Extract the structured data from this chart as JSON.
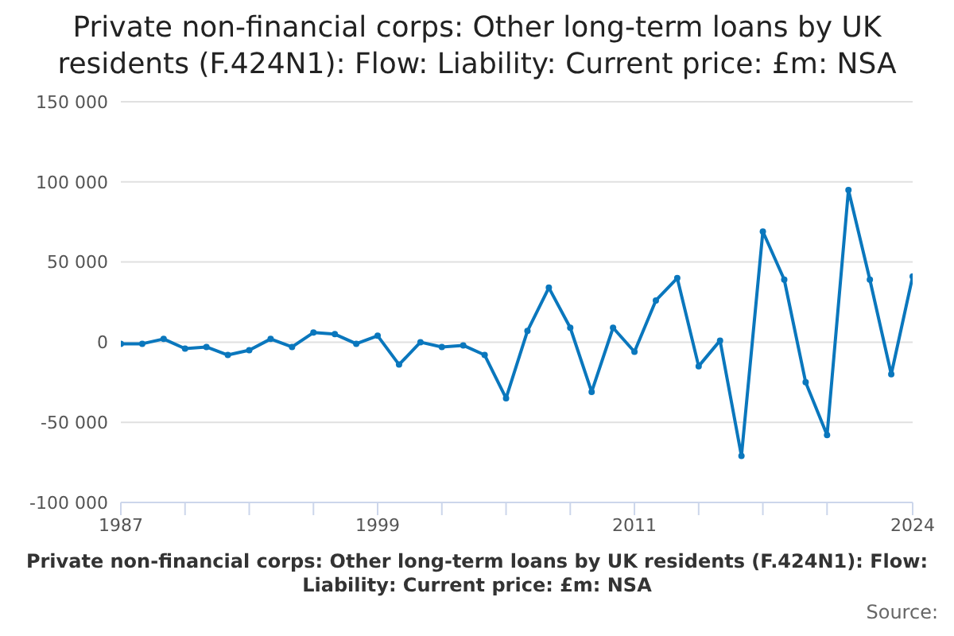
{
  "chart_data": {
    "type": "line",
    "title": "Private non-financial corps: Other long-term loans by UK residents (F.424N1): Flow: Liability: Current price: £m: NSA",
    "xlabel": "Private non-financial corps: Other long-term loans by UK residents (F.424N1): Flow: Liability: Current price: £m: NSA",
    "annotations": [
      "Source:"
    ],
    "x": [
      1987,
      1988,
      1989,
      1990,
      1991,
      1992,
      1993,
      1994,
      1995,
      1996,
      1997,
      1998,
      1999,
      2000,
      2001,
      2002,
      2003,
      2004,
      2005,
      2006,
      2007,
      2008,
      2009,
      2010,
      2011,
      2012,
      2013,
      2014,
      2015,
      2016,
      2017,
      2018,
      2019,
      2020,
      2021,
      2022,
      2023,
      2024
    ],
    "series": [
      {
        "color": "#0a77bd",
        "values": [
          -1000,
          -1000,
          2000,
          -4000,
          -3000,
          -8000,
          -5000,
          2000,
          -3000,
          6000,
          5000,
          -1000,
          4000,
          -14000,
          0,
          -3000,
          -2000,
          -8000,
          -35000,
          7000,
          34000,
          9000,
          -31000,
          9000,
          -6000,
          26000,
          40000,
          -15000,
          1000,
          -71000,
          69000,
          39000,
          -25000,
          -58000,
          95000,
          39000,
          -20000,
          41000
        ]
      }
    ],
    "xlim": [
      1987,
      2024
    ],
    "xticks": [
      1987,
      {
        "value": 1990,
        "label": null
      },
      {
        "value": 1993,
        "label": null
      },
      {
        "value": 1996,
        "label": null
      },
      1999,
      {
        "value": 2002,
        "label": null
      },
      {
        "value": 2005,
        "label": null
      },
      {
        "value": 2008,
        "label": null
      },
      2011,
      {
        "value": 2014,
        "label": null
      },
      {
        "value": 2017,
        "label": null
      },
      {
        "value": 2020,
        "label": null
      },
      2024
    ],
    "ylim": [
      -100000,
      150000
    ],
    "yticks": [
      {
        "value": -100000,
        "label": "-100 000"
      },
      {
        "value": -50000,
        "label": "-50 000"
      },
      0,
      {
        "value": 50000,
        "label": "50 000"
      },
      {
        "value": 100000,
        "label": "100 000"
      },
      {
        "value": 150000,
        "label": "150 000"
      }
    ],
    "grid": "y",
    "legend": false,
    "marker": "circle",
    "line_style": "solid"
  }
}
